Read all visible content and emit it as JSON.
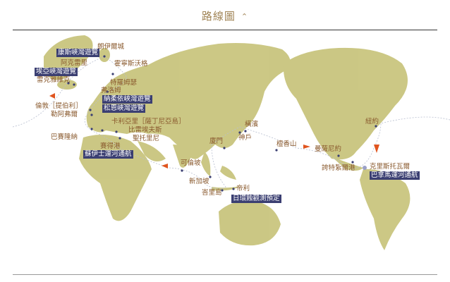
{
  "header": {
    "title": "路線圖",
    "toggle_icon": "chevron-up-icon"
  },
  "colors": {
    "land": "#c9c57e",
    "label": "#8a5a2e",
    "highlight_bg": "#3b3f72",
    "route_arrow": "#e0551f",
    "port_dot": "#3b3f72"
  },
  "ports": {
    "longyearbyen": "朗伊爾城",
    "akureyri": "阿克雷里",
    "reykjavik": "雷克雅維克",
    "honningsvag": "霍寧斯沃格",
    "tromso": "特羅姆瑟",
    "flam": "弗洛姆",
    "london": "倫敦［提伯利］",
    "le_havre": "勒阿弗爾",
    "cagliari": "卡利亞里［薩丁尼亞島］",
    "piraeus": "比雷埃夫斯",
    "santorini": "聖托里尼",
    "barcelona": "巴賽隆納",
    "port_said": "賽得港",
    "colombo": "可倫坡",
    "singapore": "新加坡",
    "bali": "峇里島",
    "dili": "帝利",
    "xiamen": "廈門",
    "kobe": "神戶",
    "yokohama": "橫濱",
    "honolulu": "檀香山",
    "manzanillo": "曼薩尼約",
    "puerto_quetzal": "誇特紮爾港",
    "new_york": "紐約",
    "cristobal": "克里斯托瓦爾"
  },
  "highlights": {
    "kongsfjord": "康斯峽灣遊覽",
    "eyjafjord": "埃亞峽灣遊覽",
    "naeroyfjord": "納柔依峽灣遊覽",
    "sognefjord": "松恩峽灣遊覽",
    "suez": "蘇伊士運河通航",
    "eclipse": "日環蝕觀測預定",
    "panama": "巴拿馬運河通航"
  }
}
